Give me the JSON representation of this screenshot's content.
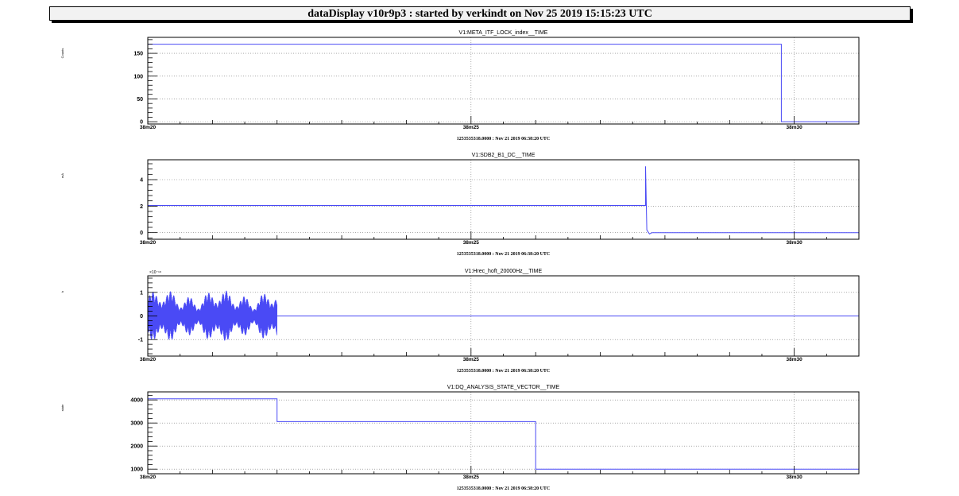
{
  "window": {
    "title": "dataDisplay v10r9p3 : started by verkindt on Nov 25 2019 15:15:23 UTC"
  },
  "colors": {
    "trace": "#4a4af5",
    "frame": "#000000",
    "grid": "#777777"
  },
  "chart_data": [
    {
      "type": "line",
      "title": "V1:META_ITF_LOCK_index__TIME",
      "ylabel": "Counts",
      "xlabel": "1253535318.0000 : Nov 21 2019 06:38:20 UTC",
      "x_ticks": [
        "38m20",
        "38m25",
        "38m30"
      ],
      "x_unit": "seconds after 06:38:20",
      "xlim": [
        0,
        11
      ],
      "ylim": [
        -5,
        185
      ],
      "y_ticks": [
        0,
        50,
        100,
        150
      ],
      "y_tick_labels": [
        "0",
        "50",
        "100",
        "150"
      ],
      "grid": true,
      "x": [
        0,
        9.8,
        9.8,
        11
      ],
      "y": [
        170,
        170,
        0,
        0
      ]
    },
    {
      "type": "line",
      "title": "V1:SDB2_B1_DC__TIME",
      "ylabel": "mA",
      "xlabel": "1253535318.0000 : Nov 21 2019 06:38:20 UTC",
      "x_ticks": [
        "38m20",
        "38m25",
        "38m30"
      ],
      "x_unit": "seconds after 06:38:20",
      "xlim": [
        0,
        11
      ],
      "ylim": [
        -0.5,
        5.5
      ],
      "y_ticks": [
        0,
        2,
        4
      ],
      "y_tick_labels": [
        "0",
        "2",
        "4"
      ],
      "grid": true,
      "x": [
        0,
        7.7,
        7.7,
        7.72,
        7.76,
        7.8,
        7.85,
        11
      ],
      "y": [
        2.05,
        2.05,
        5.0,
        0.2,
        -0.1,
        0.0,
        0.0,
        0.0
      ]
    },
    {
      "type": "line",
      "title": "V1:Hrec_hoft_20000Hz__TIME",
      "ylabel": "h",
      "xlabel": "1253535318.0000 : Nov 21 2019 06:38:20 UTC",
      "y_exponent": "×10⁻¹⁸",
      "x_ticks": [
        "38m20",
        "38m25",
        "38m30"
      ],
      "x_unit": "seconds after 06:38:20",
      "xlim": [
        0,
        11
      ],
      "ylim": [
        -1.7,
        1.7
      ],
      "y_ticks": [
        -1,
        0,
        1
      ],
      "y_tick_labels": [
        "-1",
        "0",
        "1"
      ],
      "grid": true,
      "noise_until": 2.0,
      "noise_amplitude": 1.1,
      "flat_value": 0
    },
    {
      "type": "line",
      "title": "V1:DQ_ANALYSIS_STATE_VECTOR__TIME",
      "ylabel": "state",
      "xlabel": "1253535318.0000 : Nov 21 2019 06:38:20 UTC",
      "x_ticks": [
        "38m20",
        "38m25",
        "38m30"
      ],
      "x_unit": "seconds after 06:38:20",
      "xlim": [
        0,
        11
      ],
      "ylim": [
        800,
        4350
      ],
      "y_ticks": [
        1000,
        2000,
        3000,
        4000
      ],
      "y_tick_labels": [
        "1000",
        "2000",
        "3000",
        "4000"
      ],
      "grid": true,
      "x": [
        0,
        2.0,
        2.0,
        6.0,
        6.0,
        11
      ],
      "y": [
        4050,
        4050,
        3060,
        3060,
        1000,
        1000
      ]
    }
  ]
}
